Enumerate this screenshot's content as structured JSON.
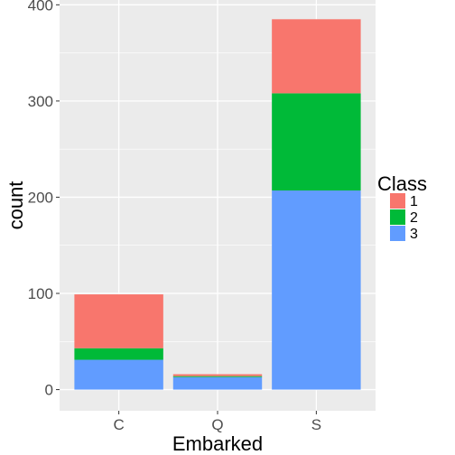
{
  "chart_data": {
    "type": "bar",
    "stacked": true,
    "categories": [
      "C",
      "Q",
      "S"
    ],
    "series": [
      {
        "name": "3",
        "color": "#619CFF",
        "values": [
          31,
          13,
          207
        ]
      },
      {
        "name": "2",
        "color": "#00BA38",
        "values": [
          12,
          1,
          101
        ]
      },
      {
        "name": "1",
        "color": "#F8766D",
        "values": [
          56,
          2,
          77
        ]
      }
    ],
    "xlabel": "Embarked",
    "ylabel": "count",
    "ylim": [
      -22,
      405
    ],
    "yticks": [
      0,
      100,
      200,
      300,
      400
    ],
    "grid": true,
    "legend": {
      "title": "Class",
      "placement": "right",
      "entries": [
        {
          "label": "1",
          "color": "#F8766D"
        },
        {
          "label": "2",
          "color": "#00BA38"
        },
        {
          "label": "3",
          "color": "#619CFF"
        }
      ]
    }
  }
}
